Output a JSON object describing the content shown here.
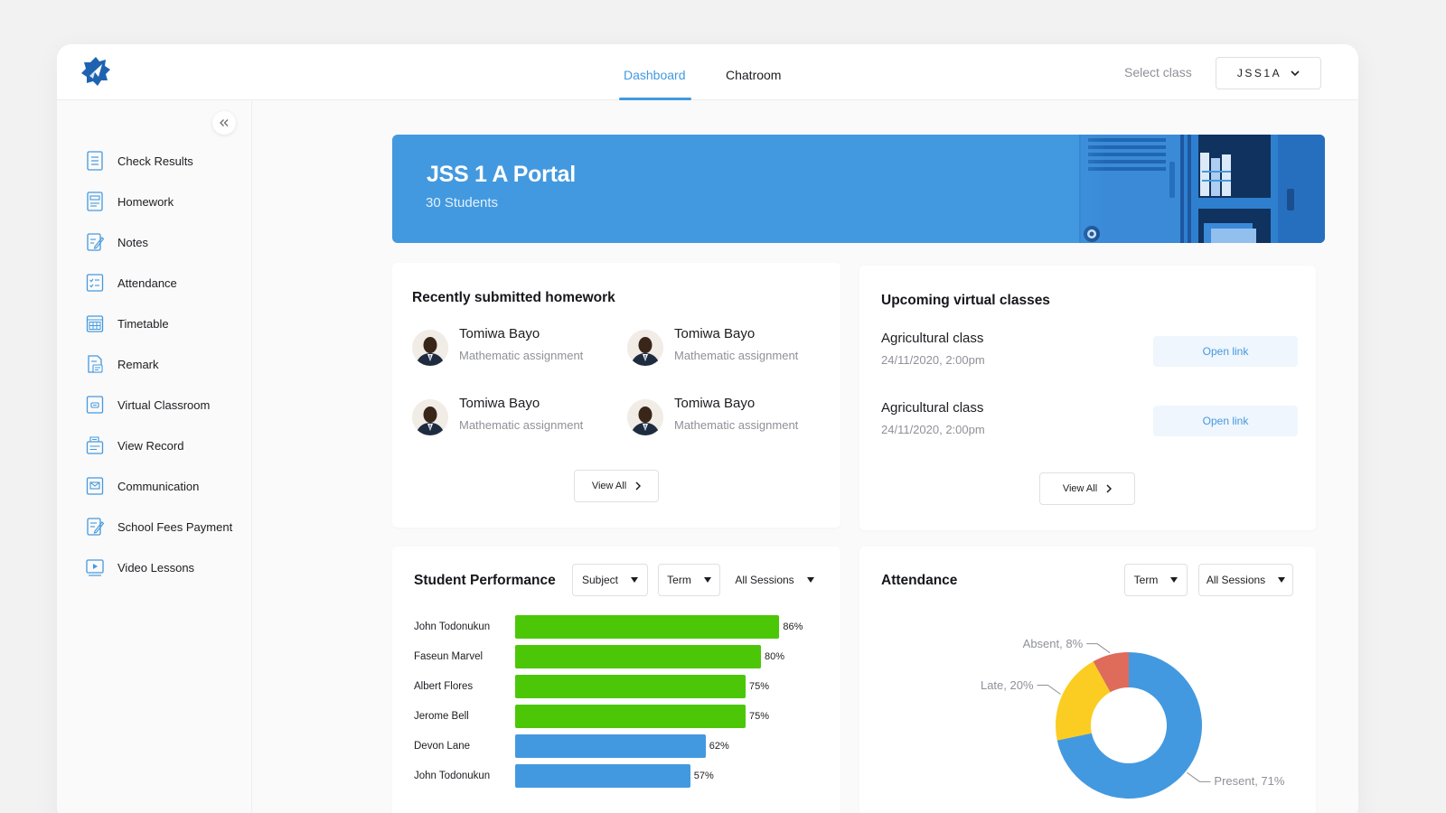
{
  "topbar": {
    "tabs": [
      {
        "label": "Dashboard",
        "active": true
      },
      {
        "label": "Chatroom",
        "active": false
      }
    ],
    "select_class_label": "Select class",
    "selected_class": "JSS1A"
  },
  "sidebar": {
    "items": [
      {
        "label": "Check Results",
        "icon": "document-list-icon"
      },
      {
        "label": "Homework",
        "icon": "homework-icon"
      },
      {
        "label": "Notes",
        "icon": "notes-edit-icon"
      },
      {
        "label": "Attendance",
        "icon": "checklist-icon"
      },
      {
        "label": "Timetable",
        "icon": "calendar-grid-icon"
      },
      {
        "label": "Remark",
        "icon": "remark-icon"
      },
      {
        "label": "Virtual Classroom",
        "icon": "virtual-classroom-icon"
      },
      {
        "label": "View Record",
        "icon": "record-book-icon"
      },
      {
        "label": "Communication",
        "icon": "message-icon"
      },
      {
        "label": "School Fees Payment",
        "icon": "payment-icon"
      },
      {
        "label": "Video Lessons",
        "icon": "video-icon"
      }
    ]
  },
  "banner": {
    "title": "JSS 1 A Portal",
    "subtitle": "30 Students"
  },
  "homework": {
    "title": "Recently submitted homework",
    "items": [
      {
        "name": "Tomiwa Bayo",
        "subject": "Mathematic assignment"
      },
      {
        "name": "Tomiwa Bayo",
        "subject": "Mathematic assignment"
      },
      {
        "name": "Tomiwa Bayo",
        "subject": "Mathematic assignment"
      },
      {
        "name": "Tomiwa Bayo",
        "subject": "Mathematic assignment"
      }
    ],
    "view_all": "View All"
  },
  "virtual_classes": {
    "title": "Upcoming virtual classes",
    "items": [
      {
        "name": "Agricultural class",
        "date": "24/11/2020, 2:00pm",
        "link_label": "Open link"
      },
      {
        "name": "Agricultural class",
        "date": "24/11/2020, 2:00pm",
        "link_label": "Open link"
      }
    ],
    "view_all": "View All"
  },
  "performance": {
    "title": "Student Performance",
    "filters": [
      "Subject",
      "Term",
      "All Sessions"
    ]
  },
  "attendance": {
    "title": "Attendance",
    "filters": [
      "Term",
      "All Sessions"
    ]
  },
  "colors": {
    "accent": "#4399df",
    "bar_high": "#4bc708",
    "bar_mid": "#4399df",
    "pie_present": "#4399df",
    "pie_late": "#fbcd22",
    "pie_absent": "#df6b5b"
  },
  "chart_data": [
    {
      "type": "bar",
      "orientation": "horizontal",
      "title": "Student Performance",
      "categories": [
        "John Todonukun",
        "Faseun Marvel",
        "Albert Flores",
        "Jerome Bell",
        "Devon Lane",
        "John Todonukun"
      ],
      "values": [
        86,
        80,
        75,
        75,
        62,
        57
      ],
      "value_labels": [
        "86%",
        "80%",
        "75%",
        "75%",
        "62%",
        "57%"
      ],
      "xlim": [
        0,
        100
      ]
    },
    {
      "type": "pie",
      "donut": true,
      "title": "Attendance",
      "labels": [
        "Present",
        "Late",
        "Absent"
      ],
      "values": [
        71,
        20,
        8
      ],
      "value_labels": [
        "Present, 71%",
        "Late, 20%",
        "Absent, 8%"
      ]
    }
  ]
}
